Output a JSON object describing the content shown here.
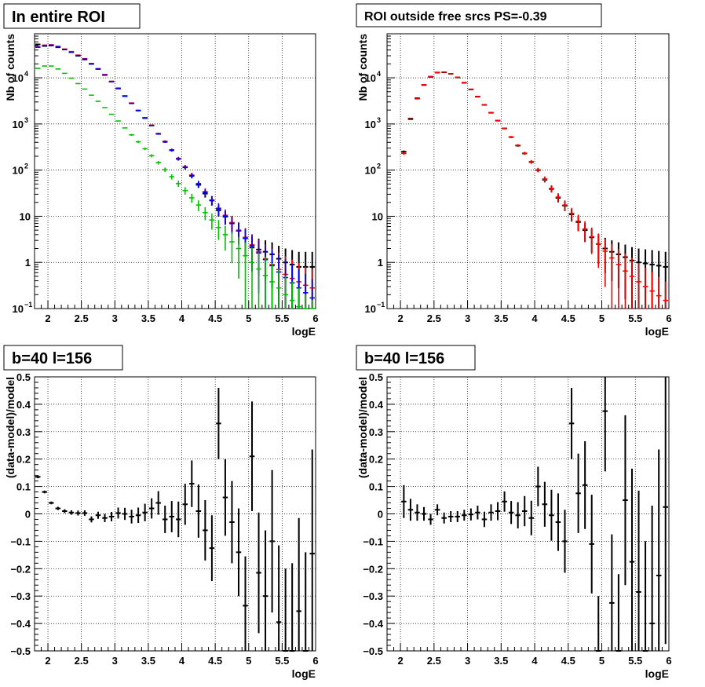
{
  "colors": {
    "data": "#000000",
    "model_red": "#ff0000",
    "model_blue": "#0000ff",
    "model_green": "#00c000",
    "grid": "#000000"
  },
  "chart_data": [
    {
      "type": "scatter",
      "title": "In entire ROI",
      "xlabel": "logE",
      "ylabel": "Nb of counts",
      "xscale": "linear",
      "yscale": "log",
      "xlim": [
        1.8,
        6
      ],
      "ylim": [
        0.1,
        90000
      ],
      "grid": true,
      "xticks": [
        "2",
        "2.5",
        "3",
        "3.5",
        "4",
        "4.5",
        "5",
        "5.5",
        "6"
      ],
      "yticks": [
        {
          "value": 0.1,
          "base": "10",
          "exp": "−1"
        },
        {
          "value": 1,
          "text": "1"
        },
        {
          "value": 10,
          "text": "10"
        },
        {
          "value": 100,
          "base": "10",
          "exp": "2"
        },
        {
          "value": 1000,
          "base": "10",
          "exp": "3"
        },
        {
          "value": 10000,
          "base": "10",
          "exp": "4"
        }
      ],
      "bin_width": 0.1,
      "x": [
        1.85,
        1.95,
        2.05,
        2.15,
        2.25,
        2.35,
        2.45,
        2.55,
        2.65,
        2.75,
        2.85,
        2.95,
        3.05,
        3.15,
        3.25,
        3.35,
        3.45,
        3.55,
        3.65,
        3.75,
        3.85,
        3.95,
        4.05,
        4.15,
        4.25,
        4.35,
        4.45,
        4.55,
        4.65,
        4.75,
        4.85,
        4.95,
        5.05,
        5.15,
        5.25,
        5.35,
        5.45,
        5.55,
        5.65,
        5.75,
        5.85,
        5.95
      ],
      "series": [
        {
          "role": "data",
          "color": "#000000",
          "y": [
            53000,
            49000,
            50000,
            46000,
            41000,
            36000,
            30000,
            25000,
            20000,
            15500,
            11500,
            8300,
            5900,
            4000,
            2800,
            1950,
            1340,
            930,
            610,
            410,
            270,
            175,
            115,
            75,
            48,
            31,
            22,
            13.5,
            9.8,
            7,
            4.9,
            3.4,
            2.1,
            1.9,
            1.7,
            1.5,
            1.2,
            1,
            0.9,
            0.8,
            0.8,
            0.8
          ]
        },
        {
          "role": "model",
          "color": "#ff0000",
          "y": [
            47000,
            51000,
            52000,
            48000,
            42000,
            37000,
            31000,
            26000,
            20500,
            15800,
            11800,
            8400,
            6000,
            4100,
            2850,
            1980,
            1370,
            940,
            620,
            420,
            275,
            180,
            118,
            78,
            51,
            34,
            22.5,
            15,
            10.5,
            7.3,
            5,
            3.5,
            2.4,
            1.7,
            1.2,
            0.9,
            0.7,
            0.55,
            0.45,
            0.38,
            0.32,
            0.28
          ]
        },
        {
          "role": "model",
          "color": "#0000ff",
          "y": [
            46000,
            50000,
            51000,
            47000,
            41000,
            36000,
            30500,
            25500,
            20000,
            15500,
            11500,
            8200,
            5800,
            4000,
            2800,
            1950,
            1350,
            920,
            610,
            410,
            270,
            175,
            115,
            76,
            50,
            33,
            22,
            14.5,
            10,
            7,
            4.8,
            3.3,
            2.3,
            1.6,
            1.15,
            0.85,
            0.62,
            0.47,
            0.36,
            0.28,
            0.22,
            0.17
          ]
        },
        {
          "role": "model",
          "color": "#00c000",
          "y": [
            16000,
            18000,
            18000,
            15500,
            12500,
            9800,
            7500,
            5700,
            4200,
            3100,
            2250,
            1620,
            1160,
            820,
            580,
            410,
            290,
            205,
            145,
            102,
            72,
            51,
            36,
            25,
            17.5,
            12,
            8.3,
            5.7,
            4,
            2.8,
            2,
            1.4,
            1,
            0.72,
            0.52,
            0.38,
            0.28,
            0.2,
            0.15,
            0.11,
            0.08,
            0.06
          ]
        }
      ]
    },
    {
      "type": "scatter",
      "title": "ROI outside free srcs PS=-0.39",
      "xlabel": "logE",
      "ylabel": "Nb of counts",
      "xscale": "linear",
      "yscale": "log",
      "xlim": [
        1.8,
        6
      ],
      "ylim": [
        0.1,
        90000
      ],
      "grid": true,
      "xticks": [
        "2",
        "2.5",
        "3",
        "3.5",
        "4",
        "4.5",
        "5",
        "5.5",
        "6"
      ],
      "yticks": [
        {
          "value": 0.1,
          "base": "10",
          "exp": "−1"
        },
        {
          "value": 1,
          "text": "1"
        },
        {
          "value": 10,
          "text": "10"
        },
        {
          "value": 100,
          "base": "10",
          "exp": "2"
        },
        {
          "value": 1000,
          "base": "10",
          "exp": "3"
        },
        {
          "value": 10000,
          "base": "10",
          "exp": "4"
        }
      ],
      "bin_width": 0.1,
      "x": [
        2.05,
        2.15,
        2.25,
        2.35,
        2.45,
        2.55,
        2.65,
        2.75,
        2.85,
        2.95,
        3.05,
        3.15,
        3.25,
        3.35,
        3.45,
        3.55,
        3.65,
        3.75,
        3.85,
        3.95,
        4.05,
        4.15,
        4.25,
        4.35,
        4.45,
        4.55,
        4.65,
        4.75,
        4.85,
        4.95,
        5.05,
        5.15,
        5.25,
        5.35,
        5.45,
        5.55,
        5.65,
        5.75,
        5.85,
        5.95
      ],
      "series": [
        {
          "role": "data",
          "color": "#000000",
          "y": [
            250,
            1300,
            3600,
            7000,
            10500,
            13000,
            13200,
            12200,
            10200,
            7800,
            5600,
            3900,
            2600,
            1750,
            1180,
            800,
            520,
            340,
            230,
            150,
            100,
            62,
            39,
            25,
            17,
            11,
            7.5,
            5,
            3.5,
            2.5,
            2,
            1.7,
            1.5,
            1.3,
            1.1,
            1,
            0.95,
            0.9,
            0.85,
            0.8
          ]
        },
        {
          "role": "model",
          "color": "#ff0000",
          "y": [
            230,
            1250,
            3500,
            7100,
            10700,
            13100,
            13300,
            12300,
            10300,
            7900,
            5650,
            3950,
            2620,
            1760,
            1190,
            810,
            525,
            345,
            232,
            152,
            101,
            64,
            40,
            26,
            17.5,
            11.5,
            7.8,
            5.3,
            3.6,
            2.5,
            1.75,
            1.25,
            0.9,
            0.65,
            0.5,
            0.38,
            0.3,
            0.24,
            0.19,
            0.15
          ]
        }
      ]
    },
    {
      "type": "scatter",
      "title": "b=40 l=156",
      "xlabel": "logE",
      "ylabel": "(data-model)/model",
      "xscale": "linear",
      "yscale": "linear",
      "xlim": [
        1.8,
        6
      ],
      "ylim": [
        -0.5,
        0.5
      ],
      "grid": true,
      "xticks": [
        "2",
        "2.5",
        "3",
        "3.5",
        "4",
        "4.5",
        "5",
        "5.5",
        "6"
      ],
      "yticks": [
        "−0.5",
        "−0.4",
        "−0.3",
        "−0.2",
        "−0.1",
        "0",
        "0.1",
        "0.2",
        "0.3",
        "0.4",
        "0.5"
      ],
      "bin_width": 0.1,
      "x": [
        1.85,
        1.95,
        2.05,
        2.15,
        2.25,
        2.35,
        2.45,
        2.55,
        2.65,
        2.75,
        2.85,
        2.95,
        3.05,
        3.15,
        3.25,
        3.35,
        3.45,
        3.55,
        3.65,
        3.75,
        3.85,
        3.95,
        4.05,
        4.15,
        4.25,
        4.35,
        4.45,
        4.55,
        4.65,
        4.75,
        4.85,
        4.95,
        5.05,
        5.15,
        5.25,
        5.35,
        5.45,
        5.55,
        5.65,
        5.75,
        5.85,
        5.95
      ],
      "y": [
        0.135,
        0.08,
        0.04,
        0.02,
        0.01,
        0.005,
        0.003,
        0.003,
        -0.02,
        -0.005,
        -0.015,
        -0.01,
        0.003,
        0.0,
        -0.01,
        -0.005,
        0.005,
        0.02,
        0.04,
        -0.02,
        -0.01,
        -0.02,
        0.035,
        0.11,
        0.01,
        -0.06,
        -0.125,
        0.33,
        0.06,
        -0.03,
        -0.14,
        -0.335,
        0.21,
        -0.215,
        -0.3,
        -0.1,
        -0.395,
        -0.5,
        -0.5,
        -0.355,
        -0.5,
        -0.145
      ],
      "yerr": [
        0.005,
        0.005,
        0.005,
        0.006,
        0.007,
        0.008,
        0.009,
        0.01,
        0.011,
        0.013,
        0.015,
        0.017,
        0.02,
        0.022,
        0.025,
        0.028,
        0.032,
        0.037,
        0.043,
        0.05,
        0.057,
        0.065,
        0.075,
        0.085,
        0.097,
        0.11,
        0.12,
        0.13,
        0.14,
        0.15,
        0.16,
        0.18,
        0.2,
        0.22,
        0.24,
        0.26,
        0.28,
        0.3,
        0.32,
        0.34,
        0.36,
        0.38
      ]
    },
    {
      "type": "scatter",
      "title": "b=40 l=156",
      "xlabel": "logE",
      "ylabel": "(data-model)/model",
      "xscale": "linear",
      "yscale": "linear",
      "xlim": [
        1.8,
        6
      ],
      "ylim": [
        -0.5,
        0.5
      ],
      "grid": true,
      "xticks": [
        "2",
        "2.5",
        "3",
        "3.5",
        "4",
        "4.5",
        "5",
        "5.5",
        "6"
      ],
      "yticks": [
        "−0.5",
        "−0.4",
        "−0.3",
        "−0.2",
        "−0.1",
        "0",
        "0.1",
        "0.2",
        "0.3",
        "0.4",
        "0.5"
      ],
      "bin_width": 0.1,
      "x": [
        2.05,
        2.15,
        2.25,
        2.35,
        2.45,
        2.55,
        2.65,
        2.75,
        2.85,
        2.95,
        3.05,
        3.15,
        3.25,
        3.35,
        3.45,
        3.55,
        3.65,
        3.75,
        3.85,
        3.95,
        4.05,
        4.15,
        4.25,
        4.35,
        4.45,
        4.55,
        4.65,
        4.75,
        4.85,
        4.95,
        5.05,
        5.15,
        5.25,
        5.35,
        5.45,
        5.55,
        5.65,
        5.75,
        5.85,
        5.95
      ],
      "y": [
        0.045,
        0.015,
        0.005,
        0.0,
        -0.02,
        0.015,
        -0.015,
        -0.01,
        -0.01,
        -0.005,
        -0.002,
        0.005,
        -0.02,
        0.005,
        0.01,
        0.045,
        0.005,
        -0.005,
        0.01,
        -0.015,
        0.1,
        0.035,
        -0.005,
        -0.03,
        -0.1,
        0.33,
        0.075,
        0.105,
        -0.11,
        -0.5,
        0.375,
        -0.325,
        -0.5,
        0.05,
        -0.175,
        -0.285,
        -0.5,
        -0.4,
        -0.225,
        0.025
      ],
      "yerr": [
        0.06,
        0.04,
        0.03,
        0.025,
        0.02,
        0.02,
        0.02,
        0.02,
        0.02,
        0.02,
        0.022,
        0.025,
        0.028,
        0.03,
        0.033,
        0.037,
        0.042,
        0.048,
        0.055,
        0.063,
        0.072,
        0.082,
        0.093,
        0.105,
        0.115,
        0.13,
        0.145,
        0.16,
        0.18,
        0.2,
        0.22,
        0.25,
        0.28,
        0.31,
        0.34,
        0.37,
        0.4,
        0.43,
        0.46,
        0.5
      ]
    }
  ]
}
